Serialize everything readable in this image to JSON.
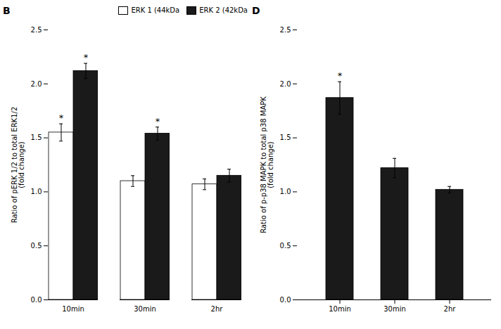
{
  "chart_data": [
    {
      "type": "bar",
      "title": "B",
      "categories": [
        "10min",
        "30min",
        "2hr"
      ],
      "series": [
        {
          "name": "ERK 1 (44kDa",
          "color": "#ffffff",
          "values": [
            1.55,
            1.1,
            1.07
          ],
          "errors": [
            0.08,
            0.05,
            0.05
          ]
        },
        {
          "name": "ERK 2 (42kDa",
          "color": "#1a1a1a",
          "values": [
            2.12,
            1.54,
            1.15
          ],
          "errors": [
            0.07,
            0.06,
            0.06
          ]
        }
      ],
      "annotations": [
        {
          "text": "*",
          "category": "10min",
          "series": "ERK 1 (44kDa"
        },
        {
          "text": "*",
          "category": "10min",
          "series": "ERK 2 (42kDa"
        },
        {
          "text": "*",
          "category": "30min",
          "series": "ERK 2 (42kDa"
        }
      ],
      "ylabel": "Ratio of pERK 1/2 to total ERK1/2\n(fold change)",
      "ylim": [
        0,
        2.5
      ],
      "yticks": [
        {
          "value": 0,
          "label": "0.0"
        },
        0.5,
        {
          "value": 1,
          "label": "1.0"
        },
        1.5,
        {
          "value": 2,
          "label": "2.0"
        },
        2.5
      ],
      "legend": "upper right"
    },
    {
      "type": "bar",
      "title": "D",
      "categories": [
        "10min",
        "30min",
        "2hr"
      ],
      "values": [
        1.87,
        1.22,
        1.02
      ],
      "errors": [
        0.15,
        0.09,
        0.03
      ],
      "color": "#1a1a1a",
      "annotations": [
        {
          "text": "*",
          "category": "10min"
        }
      ],
      "ylabel": "Ratio of p-p38 MAPK to total p38 MAPK\n(fold change)",
      "ylim": [
        0,
        2.5
      ],
      "yticks": [
        {
          "value": 0,
          "label": "0.0"
        },
        0.5,
        {
          "value": 1,
          "label": "1.0"
        },
        1.5,
        {
          "value": 2,
          "label": "2.0"
        },
        2.5
      ]
    }
  ]
}
